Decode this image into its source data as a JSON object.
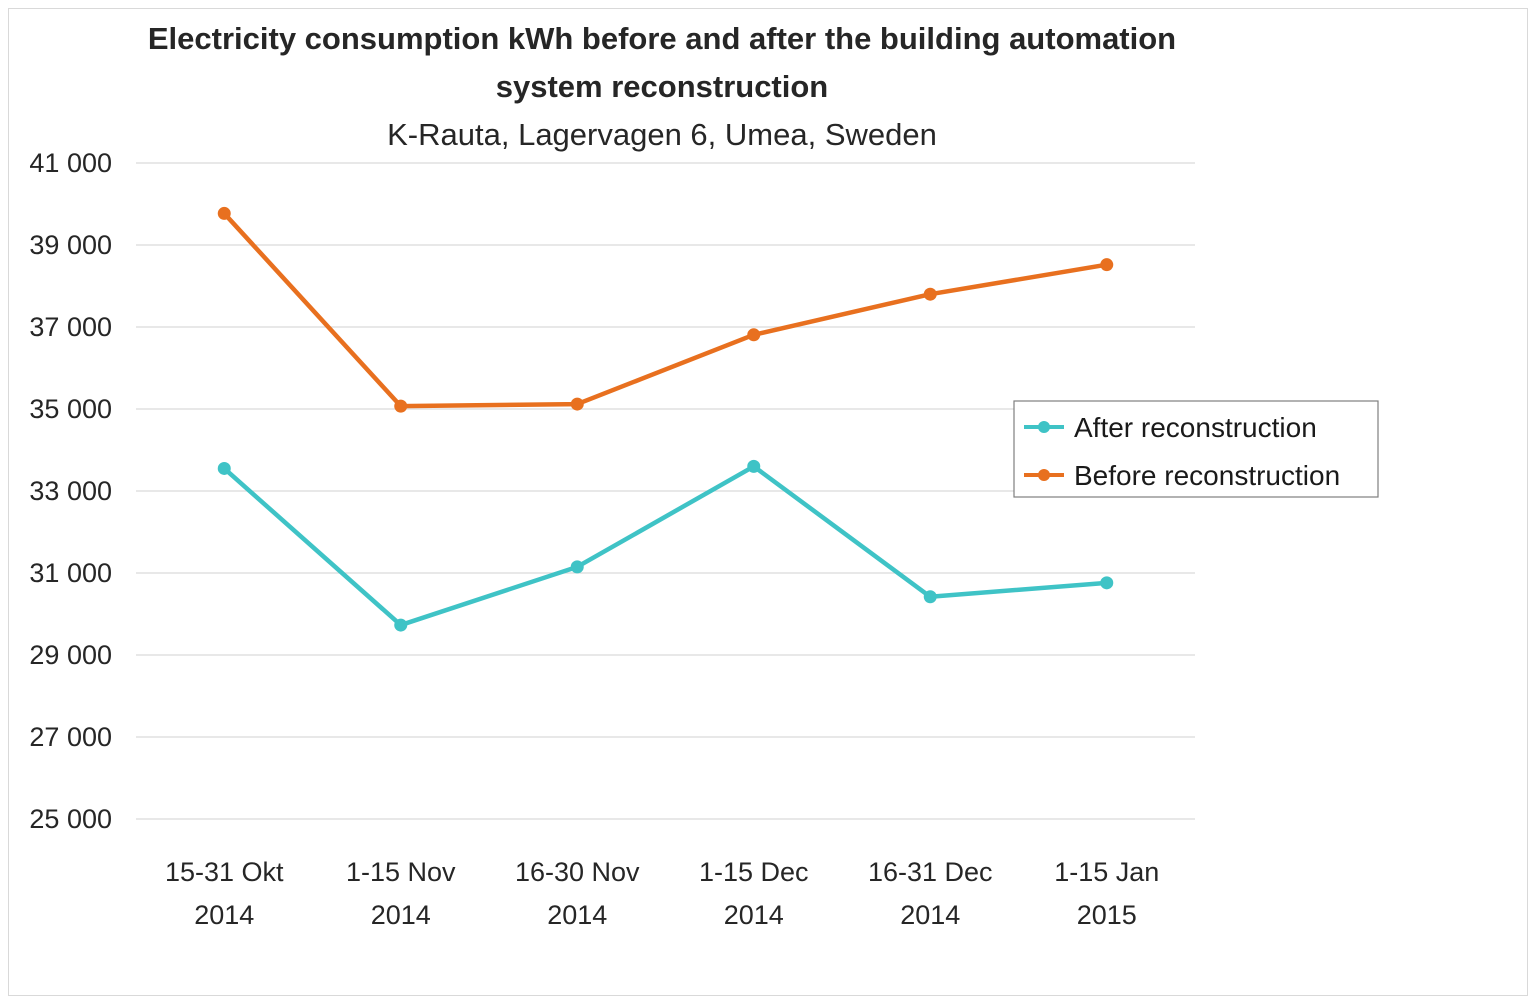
{
  "chart_data": {
    "type": "line",
    "title_line1": "Electricity consumption kWh before and after the building automation",
    "title_line2": "system reconstruction",
    "subtitle": "K-Rauta, Lagervagen 6, Umea, Sweden",
    "categories": [
      [
        "15-31 Okt",
        "2014"
      ],
      [
        "1-15 Nov",
        "2014"
      ],
      [
        "16-30 Nov",
        "2014"
      ],
      [
        "1-15 Dec",
        "2014"
      ],
      [
        "16-31 Dec",
        "2014"
      ],
      [
        "1-15 Jan",
        "2015"
      ]
    ],
    "ylim": [
      25000,
      41000
    ],
    "yticks": [
      25000,
      27000,
      29000,
      31000,
      33000,
      35000,
      37000,
      39000,
      41000
    ],
    "ytick_labels": [
      "25 000",
      "27 000",
      "29 000",
      "31 000",
      "33 000",
      "35 000",
      "37 000",
      "39 000",
      "41 000"
    ],
    "grid": true,
    "legend_position": "right",
    "series": [
      {
        "name": "After reconstruction",
        "color": "#3fc3c6",
        "values": [
          33550,
          29730,
          31150,
          33600,
          30420,
          30760
        ]
      },
      {
        "name": "Before reconstruction",
        "color": "#e8701f",
        "values": [
          39770,
          35070,
          35120,
          36810,
          37800,
          38520
        ]
      }
    ]
  }
}
